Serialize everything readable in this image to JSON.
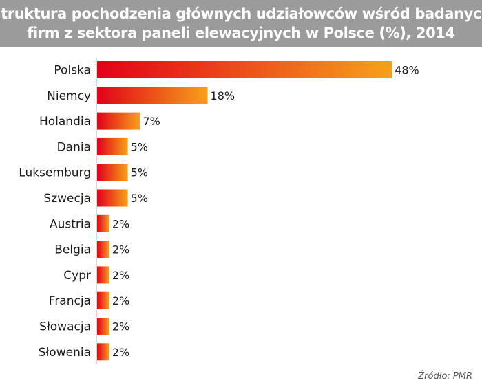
{
  "chart_data": {
    "type": "bar",
    "orientation": "horizontal",
    "title_lines": [
      "Struktura pochodzenia głównych udziałowców wśród badanych",
      "firm z sektora paneli elewacyjnych w Polsce (%), 2014"
    ],
    "categories": [
      "Polska",
      "Niemcy",
      "Holandia",
      "Dania",
      "Luksemburg",
      "Szwecja",
      "Austria",
      "Belgia",
      "Cypr",
      "Francja",
      "Słowacja",
      "Słowenia"
    ],
    "values": [
      48,
      18,
      7,
      5,
      5,
      5,
      2,
      2,
      2,
      2,
      2,
      2
    ],
    "value_labels": [
      "48%",
      "18%",
      "7%",
      "5%",
      "5%",
      "5%",
      "2%",
      "2%",
      "2%",
      "2%",
      "2%",
      "2%"
    ],
    "xlim": [
      0,
      50
    ],
    "grid": false,
    "colors": {
      "gradient_start": "#e2001a",
      "gradient_end": "#f7a11a"
    }
  },
  "source": "Źródło: PMR"
}
